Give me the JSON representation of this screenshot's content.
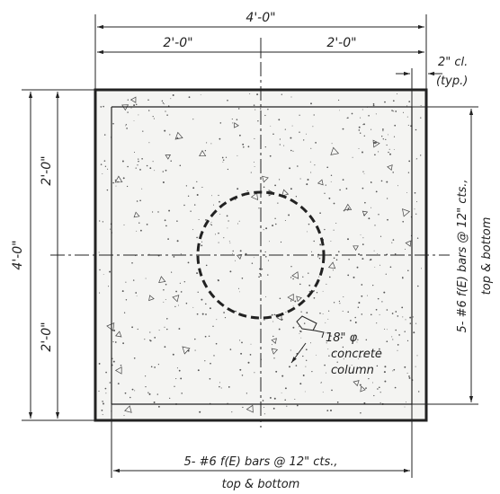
{
  "dimensions": {
    "overall_width": "4'-0\"",
    "left_half_width": "2'-0\"",
    "right_half_width": "2'-0\"",
    "overall_height": "4'-0\"",
    "upper_half_height": "2'-0\"",
    "lower_half_height": "2'-0\""
  },
  "cover_note": {
    "line1": "2\" cl.",
    "line2": "(typ.)"
  },
  "column_note": {
    "line1": "18\" φ",
    "line2": "concrete",
    "line3": "column"
  },
  "bottom_bars_note": {
    "line1": "5- #6 f(E) bars @ 12\" cts.,",
    "line2": "top & bottom"
  },
  "side_bars_note": {
    "line1": "5- #6 f(E) bars @ 12\" cts.,",
    "line2": "top & bottom"
  },
  "colors": {
    "ink": "#222222",
    "concrete_fill": "#f4f4f2"
  }
}
